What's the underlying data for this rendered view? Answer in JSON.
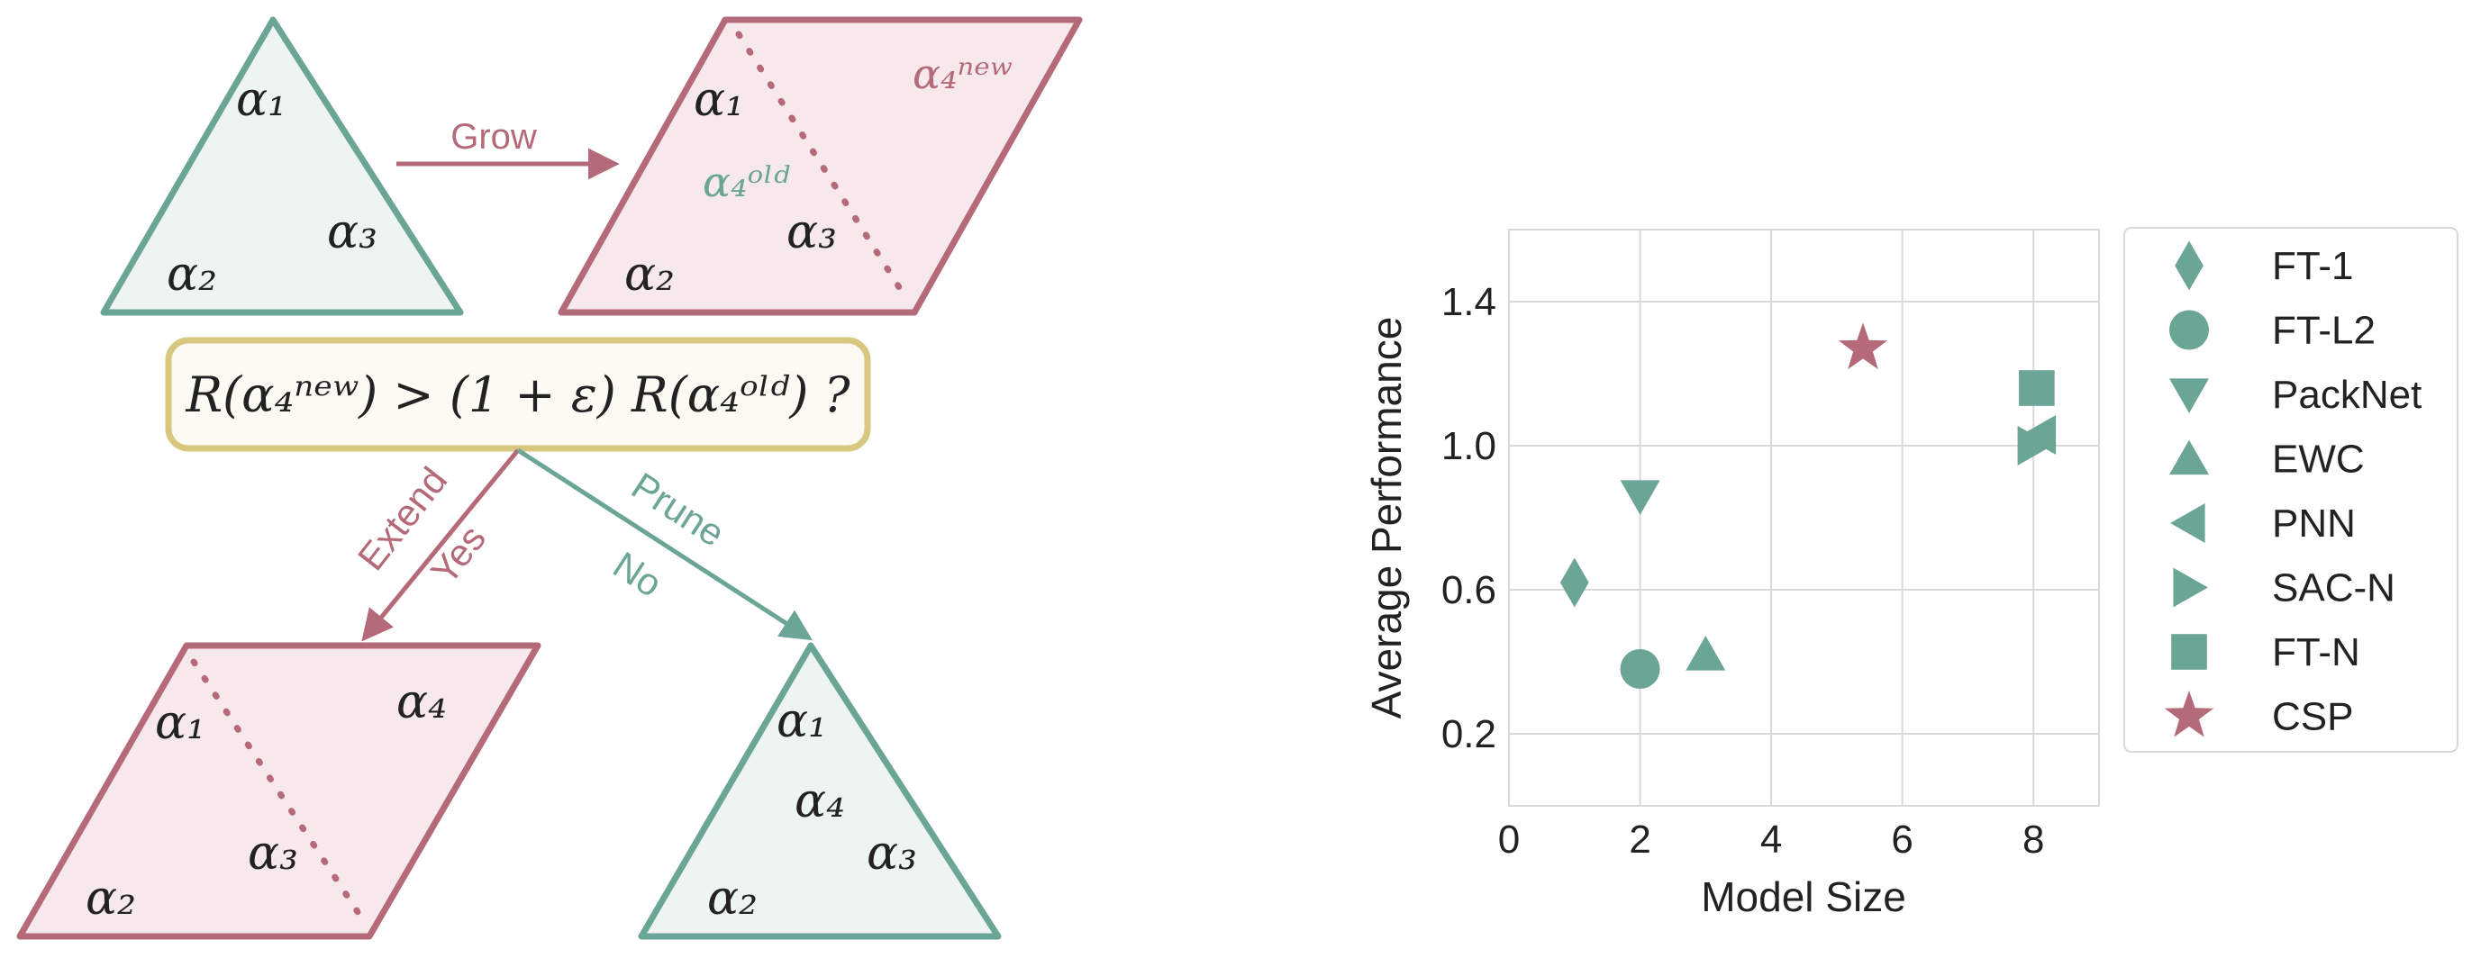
{
  "colors": {
    "teal": "#6ba596",
    "teal_fill": "#edf4f2",
    "rose": "#b56a79",
    "rose_fill": "#f6e8eb",
    "gold": "#d8c77f",
    "gold_fill": "#fcfaf2",
    "grid": "#d9d9d9",
    "axis_text": "#222222"
  },
  "diagram": {
    "grow_label": "Grow",
    "condition": "R(α₄ⁿᵉʷ) > (1 + ε) R(α₄ᵒˡᵈ) ?",
    "extend_label": "Extend",
    "yes_label": "Yes",
    "prune_label": "Prune",
    "no_label": "No",
    "a1": "α₁",
    "a2": "α₂",
    "a3": "α₃",
    "a4": "α₄",
    "a4_new": "α₄ⁿᵉʷ",
    "a4_old": "α₄ᵒˡᵈ"
  },
  "chart_data": {
    "type": "scatter",
    "xlabel": "Model Size",
    "ylabel": "Average Performance",
    "xlim": [
      0,
      9
    ],
    "ylim": [
      0,
      1.6
    ],
    "xticks": [
      0,
      2,
      4,
      6,
      8
    ],
    "yticks": [
      0.2,
      0.6,
      1.0,
      1.4
    ],
    "xtick_labels": [
      "0",
      "2",
      "4",
      "6",
      "8"
    ],
    "ytick_labels": [
      "0.2",
      "0.6",
      "1.0",
      "1.4"
    ],
    "grid": true,
    "legend_position": "right",
    "series": [
      {
        "name": "FT-1",
        "marker": "diamond",
        "color": "#6ba596",
        "x": 1.0,
        "y": 0.62
      },
      {
        "name": "FT-L2",
        "marker": "circle",
        "color": "#6ba596",
        "x": 2.0,
        "y": 0.38
      },
      {
        "name": "PackNet",
        "marker": "triangle-down",
        "color": "#6ba596",
        "x": 2.0,
        "y": 0.86
      },
      {
        "name": "EWC",
        "marker": "triangle-up",
        "color": "#6ba596",
        "x": 3.0,
        "y": 0.42
      },
      {
        "name": "PNN",
        "marker": "triangle-left",
        "color": "#6ba596",
        "x": 8.1,
        "y": 1.03
      },
      {
        "name": "SAC-N",
        "marker": "triangle-right",
        "color": "#6ba596",
        "x": 8.0,
        "y": 1.0
      },
      {
        "name": "FT-N",
        "marker": "square",
        "color": "#6ba596",
        "x": 8.05,
        "y": 1.16
      },
      {
        "name": "CSP",
        "marker": "star",
        "color": "#b56a79",
        "x": 5.4,
        "y": 1.27
      }
    ]
  }
}
